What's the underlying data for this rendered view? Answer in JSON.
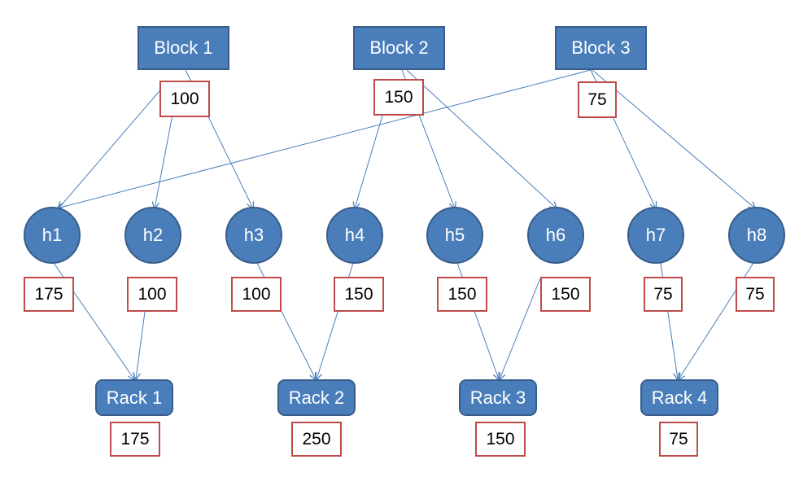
{
  "blocks": [
    {
      "label": "Block 1",
      "value": "100"
    },
    {
      "label": "Block 2",
      "value": "150"
    },
    {
      "label": "Block 3",
      "value": "75"
    }
  ],
  "hosts": [
    {
      "label": "h1",
      "value": "175"
    },
    {
      "label": "h2",
      "value": "100"
    },
    {
      "label": "h3",
      "value": "100"
    },
    {
      "label": "h4",
      "value": "150"
    },
    {
      "label": "h5",
      "value": "150"
    },
    {
      "label": "h6",
      "value": "150"
    },
    {
      "label": "h7",
      "value": "75"
    },
    {
      "label": "h8",
      "value": "75"
    }
  ],
  "racks": [
    {
      "label": "Rack 1",
      "value": "175"
    },
    {
      "label": "Rack 2",
      "value": "250"
    },
    {
      "label": "Rack 3",
      "value": "150"
    },
    {
      "label": "Rack 4",
      "value": "75"
    }
  ],
  "colors": {
    "node_fill": "#4a7ebb",
    "node_border": "#385d8a",
    "value_border": "#be4b48",
    "edge": "#4a7ebb"
  }
}
